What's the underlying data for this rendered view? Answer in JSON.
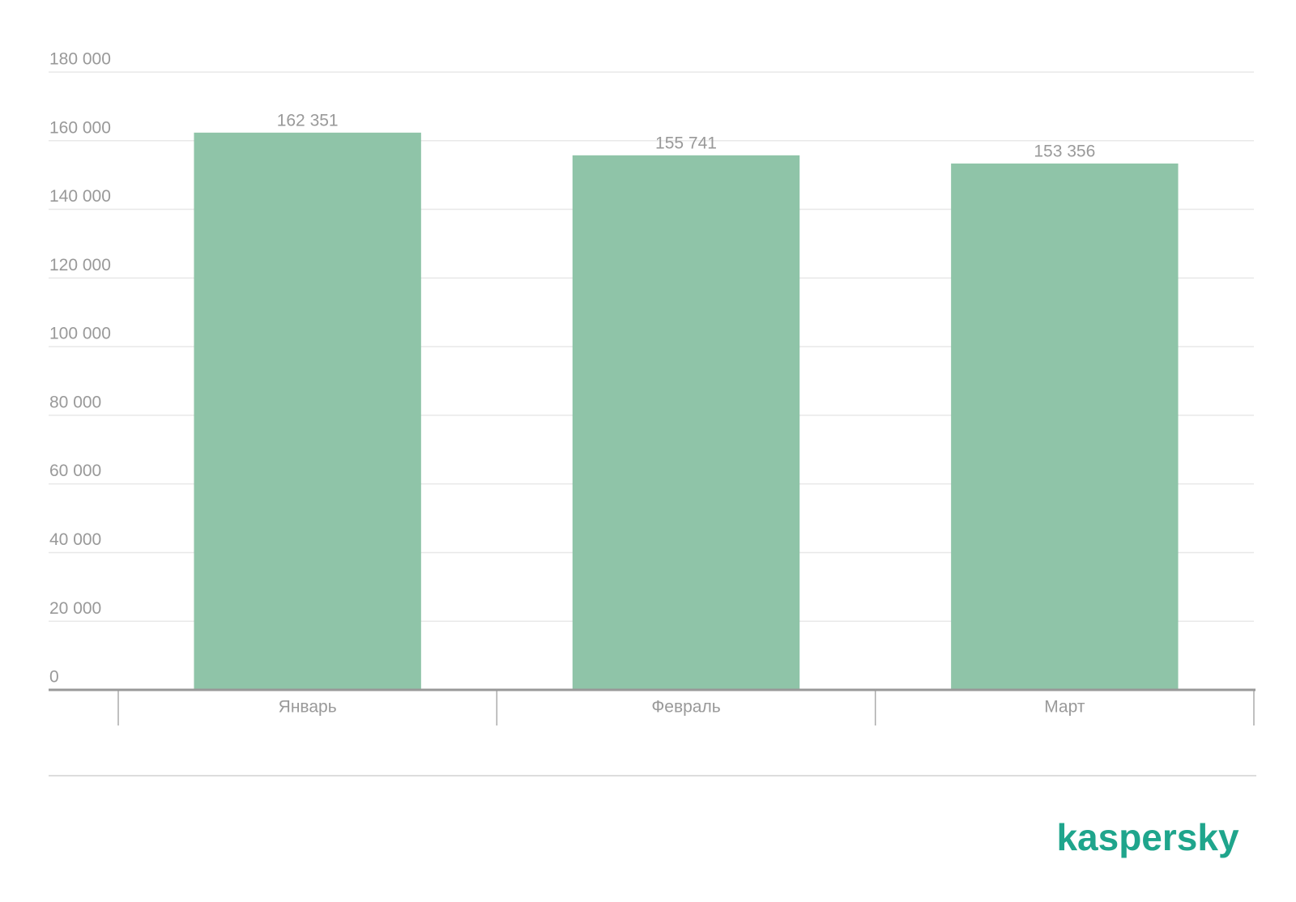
{
  "chart_data": {
    "type": "bar",
    "categories": [
      "Январь",
      "Февраль",
      "Март"
    ],
    "values": [
      162351,
      155741,
      153356
    ],
    "value_labels": [
      "162 351",
      "155 741",
      "153 356"
    ],
    "color": "#8fc4a8",
    "ylim": [
      0,
      180000
    ],
    "yticks": [
      0,
      {
        "value": 20000,
        "label": "20 000"
      },
      {
        "value": 40000,
        "label": "40 000"
      },
      {
        "value": 60000,
        "label": "60 000"
      },
      {
        "value": 80000,
        "label": "80 000"
      },
      {
        "value": 100000,
        "label": "100 000"
      },
      {
        "value": 120000,
        "label": "120 000"
      },
      {
        "value": 140000,
        "label": "140 000"
      },
      {
        "value": 160000,
        "label": "160 000"
      },
      {
        "value": 180000,
        "label": "180 000"
      }
    ],
    "grid": true
  },
  "logo": "kaspersky"
}
